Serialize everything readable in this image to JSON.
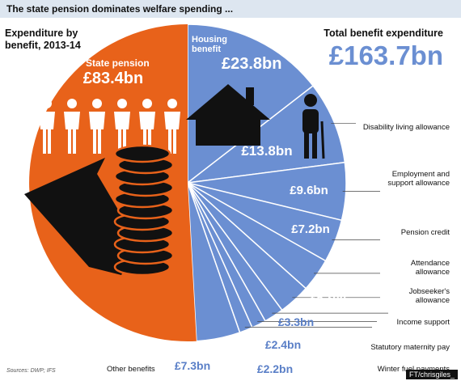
{
  "header": {
    "banner": "The state pension dominates welfare spending ...",
    "left_title": "Expenditure by",
    "left_title_2": "benefit, 2013-14",
    "right_title": "Total benefit expenditure",
    "total": "£163.7bn"
  },
  "footer": {
    "source": "Sources: DWP; IFS",
    "credit": "FT/chrisgiles_"
  },
  "colors": {
    "pension": "#e8621a",
    "others": "#6b8fd2",
    "text_light": "#ffffff",
    "text_blue": "#5a7fc7"
  },
  "icons": [
    "people-icon",
    "coin-stack-icon",
    "house-icon",
    "elderly-person-icon"
  ],
  "chart_data": {
    "type": "pie",
    "title": "Expenditure by benefit, 2013-14",
    "unit": "£bn",
    "total": 163.7,
    "slices": [
      {
        "name": "Housing benefit",
        "value": 23.8,
        "label": "£23.8bn"
      },
      {
        "name": "Disability living allowance",
        "value": 13.8,
        "label": "£13.8bn"
      },
      {
        "name": "Employment and support allowance",
        "value": 9.6,
        "label": "£9.6bn"
      },
      {
        "name": "Pension credit",
        "value": 7.2,
        "label": "£7.2bn"
      },
      {
        "name": "Attendance allowance",
        "value": 5.6,
        "label": "£5.6bn"
      },
      {
        "name": "Jobseeker's allowance",
        "value": 5.3,
        "label": "£5.3bn"
      },
      {
        "name": "Income support",
        "value": 3.3,
        "label": "£3.3bn"
      },
      {
        "name": "Statutory maternity pay",
        "value": 2.4,
        "label": "£2.4bn"
      },
      {
        "name": "Winter fuel payments",
        "value": 2.2,
        "label": "£2.2bn"
      },
      {
        "name": "Other benefits",
        "value": 7.3,
        "label": "£7.3bn"
      },
      {
        "name": "State pension",
        "value": 83.4,
        "label": "£83.4bn"
      }
    ]
  }
}
